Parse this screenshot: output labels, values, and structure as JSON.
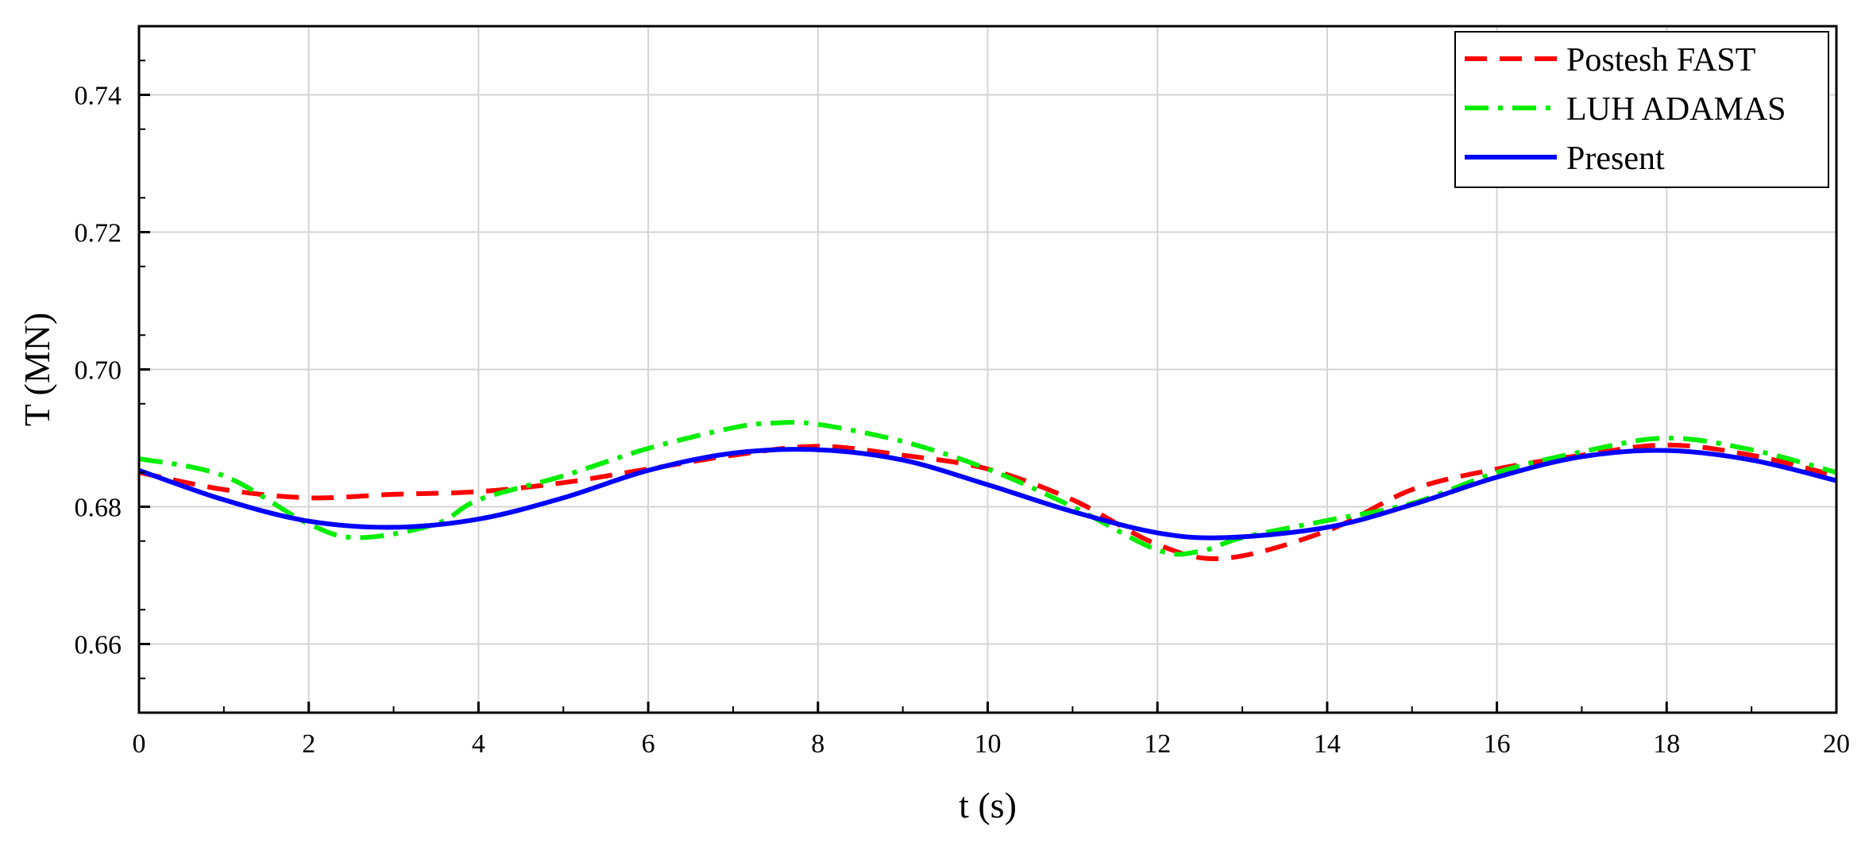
{
  "chart_data": {
    "type": "line",
    "title": "",
    "xlabel": "t (s)",
    "ylabel": "T (MN)",
    "xlim": [
      0,
      20
    ],
    "ylim": [
      0.65,
      0.75
    ],
    "xticks": [
      "0",
      "2",
      "4",
      "6",
      "8",
      "10",
      "12",
      "14",
      "16",
      "18",
      "20"
    ],
    "yticks": [
      "0.66",
      "0.68",
      "0.70",
      "0.72",
      "0.74"
    ],
    "grid": true,
    "legend_position": "top-right",
    "series": [
      {
        "name": "Postesh FAST",
        "color": "#ff0000",
        "style": "dashed",
        "x": [
          0,
          1,
          2,
          3,
          4,
          5,
          6,
          7,
          8,
          9,
          10,
          11,
          12,
          12.8,
          14,
          15,
          16,
          17,
          18,
          19,
          20
        ],
        "y": [
          0.685,
          0.6825,
          0.6813,
          0.6818,
          0.6822,
          0.6835,
          0.6855,
          0.6875,
          0.6888,
          0.6875,
          0.6855,
          0.681,
          0.6745,
          0.6725,
          0.6765,
          0.6825,
          0.6855,
          0.6875,
          0.689,
          0.6875,
          0.6845
        ]
      },
      {
        "name": "LUH ADAMAS",
        "color": "#00ee00",
        "style": "dashdot",
        "x": [
          0,
          1,
          2,
          2.6,
          3.5,
          4,
          5,
          6,
          7,
          7.5,
          8,
          9,
          10,
          11,
          12,
          12.5,
          13,
          14,
          15,
          16,
          17,
          18,
          19,
          20
        ],
        "y": [
          0.687,
          0.6845,
          0.6775,
          0.6755,
          0.6775,
          0.681,
          0.6845,
          0.6885,
          0.6915,
          0.6922,
          0.692,
          0.6895,
          0.6855,
          0.68,
          0.6737,
          0.6735,
          0.6755,
          0.678,
          0.6805,
          0.685,
          0.688,
          0.69,
          0.6883,
          0.685
        ]
      },
      {
        "name": "Present",
        "color": "#0000ff",
        "style": "solid",
        "x": [
          0,
          1,
          2,
          3,
          4,
          5,
          6,
          7,
          8,
          9,
          10,
          11,
          12,
          12.8,
          14,
          15,
          16,
          17,
          18,
          19,
          20
        ],
        "y": [
          0.6853,
          0.681,
          0.6779,
          0.677,
          0.6782,
          0.6813,
          0.6853,
          0.6878,
          0.6883,
          0.6868,
          0.6832,
          0.6793,
          0.6762,
          0.6755,
          0.677,
          0.6803,
          0.6843,
          0.6873,
          0.6882,
          0.6868,
          0.6838
        ]
      }
    ]
  }
}
